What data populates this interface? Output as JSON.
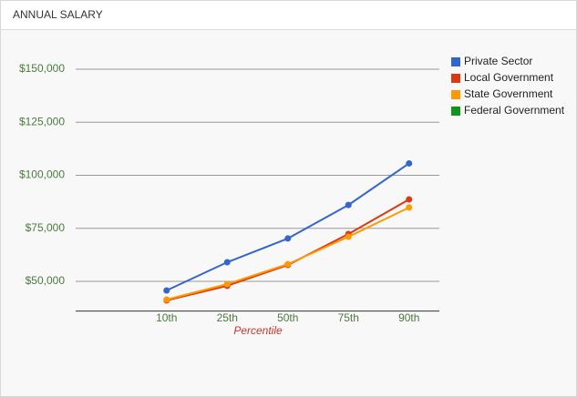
{
  "chart_data": {
    "type": "line",
    "title": "ANNUAL SALARY",
    "x_label": "Percentile",
    "categories": [
      null,
      "10th",
      "25th",
      "50th",
      "75th",
      "90th"
    ],
    "series": [
      {
        "name": "Private Sector",
        "color": "#3366cc",
        "values": [
          null,
          45700,
          59000,
          70200,
          86000,
          105600
        ]
      },
      {
        "name": "Local Government",
        "color": "#dc3912",
        "values": [
          null,
          41000,
          47900,
          57700,
          72300,
          88600
        ]
      },
      {
        "name": "State Government",
        "color": "#ff9900",
        "values": [
          null,
          41400,
          48700,
          58100,
          71000,
          84800
        ]
      },
      {
        "name": "Federal Government",
        "color": "#109618",
        "values": [
          null,
          null,
          null,
          null,
          null,
          null
        ]
      }
    ],
    "ylim": [
      36000,
      150000
    ],
    "yticks": [
      {
        "value": 50000,
        "label": "$50,000"
      },
      {
        "value": 75000,
        "label": "$75,000"
      },
      {
        "value": 100000,
        "label": "$100,000"
      },
      {
        "value": 125000,
        "label": "$125,000"
      },
      {
        "value": 150000,
        "label": "$150,000"
      }
    ],
    "grid": true,
    "legend": "right"
  }
}
